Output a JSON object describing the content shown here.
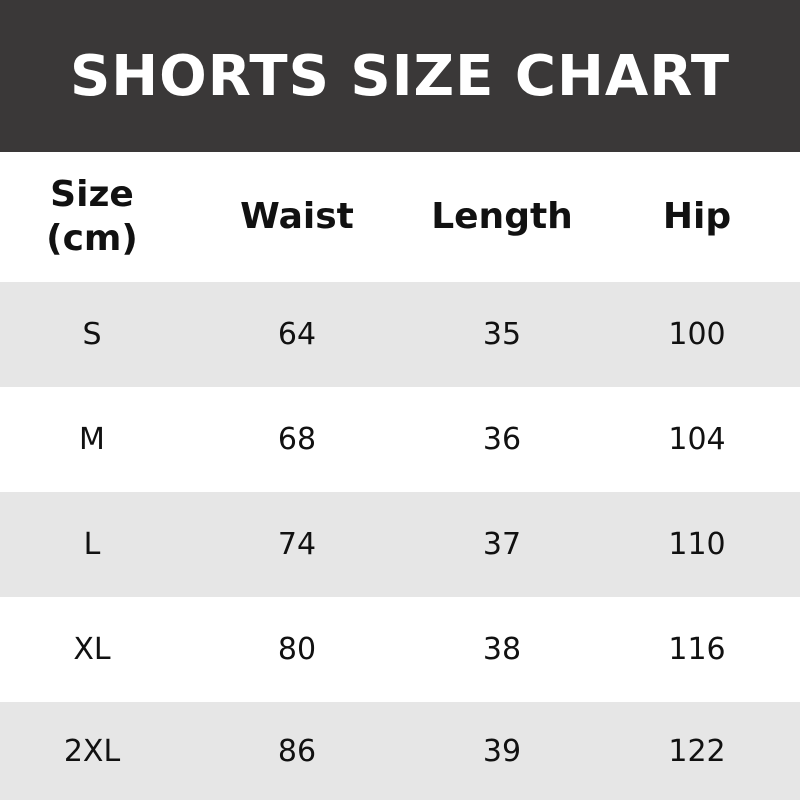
{
  "title": "SHORTS SIZE CHART",
  "headers": [
    "Size\n(cm)",
    "Waist",
    "Length",
    "Hip"
  ],
  "header_lines": {
    "size_line1": "Size",
    "size_line2": "(cm)"
  },
  "rows": [
    [
      "S",
      "64",
      "35",
      "100"
    ],
    [
      "M",
      "68",
      "36",
      "104"
    ],
    [
      "L",
      "74",
      "37",
      "110"
    ],
    [
      "XL",
      "80",
      "38",
      "116"
    ],
    [
      "2XL",
      "86",
      "39",
      "122"
    ]
  ],
  "colors": {
    "title_bar": "#3a3838",
    "stripe": "#e6e6e6",
    "title_text": "#ffffff"
  }
}
